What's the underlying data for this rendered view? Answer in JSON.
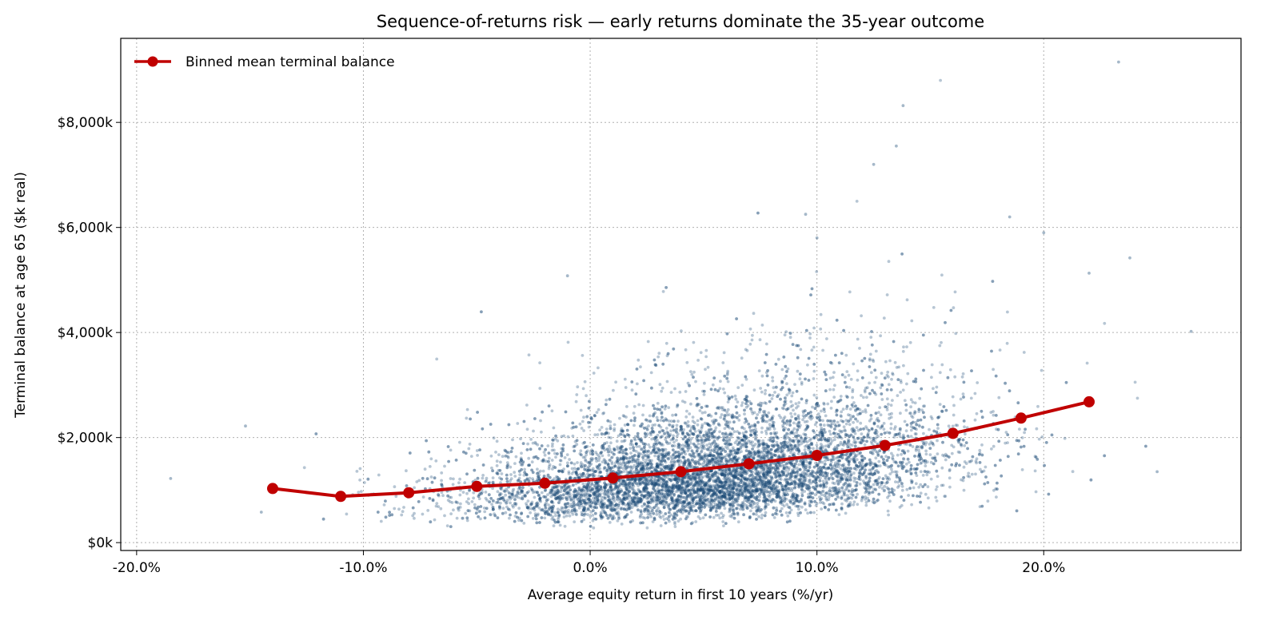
{
  "chart_data": {
    "type": "scatter",
    "title": "Sequence-of-returns risk — early returns dominate the 35-year outcome",
    "xlabel": "Average equity return in first 10 years  (%/yr)",
    "ylabel": "Terminal balance at age 65  ($k real)",
    "xlim": [
      -20.7,
      28.7
    ],
    "ylim": [
      -150,
      9600
    ],
    "x_ticks": [
      -20,
      -10,
      0,
      10,
      20
    ],
    "x_tick_labels": [
      "-20.0%",
      "-10.0%",
      "0.0%",
      "10.0%",
      "20.0%"
    ],
    "y_ticks": [
      0,
      2000,
      4000,
      6000,
      8000
    ],
    "y_tick_labels": [
      "$0k",
      "$2,000k",
      "$4,000k",
      "$6,000k",
      "$8,000k"
    ],
    "grid": true,
    "legend": "top-left",
    "colors": {
      "scatter": "#1f4e79",
      "line": "#c00000"
    },
    "series": [
      {
        "name": "Binned mean terminal balance",
        "kind": "line",
        "x": [
          -14,
          -11,
          -8,
          -5,
          -2,
          1,
          4,
          7,
          10,
          13,
          16,
          19,
          22
        ],
        "y": [
          1030,
          880,
          950,
          1070,
          1130,
          1230,
          1350,
          1500,
          1660,
          1850,
          2080,
          2370,
          2680
        ]
      }
    ],
    "scatter_points": {
      "count": 9000,
      "distribution": "x ~ Normal(mean 5.5, sd 5.2); y ~ lognormal around binned mean",
      "notable": [
        [
          -18.5,
          1220
        ],
        [
          -15.2,
          2220
        ],
        [
          -14.5,
          580
        ],
        [
          13.8,
          8320
        ],
        [
          23.3,
          9150
        ],
        [
          26.5,
          4020
        ],
        [
          25.0,
          1350
        ],
        [
          13.5,
          7550
        ],
        [
          12.5,
          7200
        ],
        [
          9.5,
          6250
        ],
        [
          10.0,
          5800
        ],
        [
          -1.0,
          5080
        ],
        [
          18.5,
          6200
        ],
        [
          20.0,
          5900
        ],
        [
          23.8,
          5420
        ],
        [
          22.0,
          5130
        ]
      ]
    }
  }
}
